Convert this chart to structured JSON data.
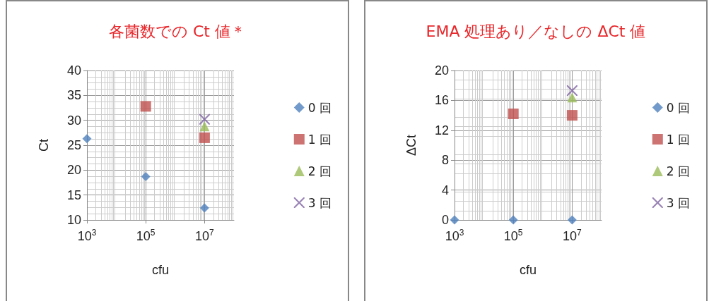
{
  "chart_data": [
    {
      "type": "scatter",
      "title": "各菌数での Ct 値＊",
      "xlabel": "cfu",
      "ylabel": "Ct",
      "log": "x",
      "grid": true,
      "legend": "right",
      "xlim": [
        1000,
        100000000
      ],
      "xticks": [
        {
          "value": 1000,
          "label": "10$^{3}$"
        },
        {
          "value": 100000,
          "label": "10$^{5}$"
        },
        {
          "value": 10000000,
          "label": "10$^{7}$"
        }
      ],
      "ylim": [
        10,
        40
      ],
      "yticks": [
        10,
        15,
        20,
        25,
        30,
        35,
        40
      ],
      "series": [
        {
          "name": "0 回",
          "color": "#4f81bd",
          "marker": "diamond",
          "x": [
            1000,
            100000,
            10000000
          ],
          "values": [
            26.3,
            18.7,
            12.4
          ]
        },
        {
          "name": "1 回",
          "color": "#c0504d",
          "marker": "square",
          "x": [
            100000,
            10000000
          ],
          "values": [
            32.8,
            26.5
          ]
        },
        {
          "name": "2 回",
          "color": "#9bbb59",
          "marker": "triangle",
          "x": [
            10000000
          ],
          "values": [
            28.8
          ]
        },
        {
          "name": "3 回",
          "color": "#8064a2",
          "marker": "cross",
          "x": [
            10000000
          ],
          "values": [
            30.2
          ]
        }
      ]
    },
    {
      "type": "scatter",
      "title": "EMA 処理あり／なしの ΔCt 値",
      "xlabel": "cfu",
      "ylabel": "ΔCt",
      "log": "x",
      "grid": true,
      "legend": "right",
      "xlim": [
        1000,
        100000000
      ],
      "xticks": [
        {
          "value": 1000,
          "label": "10$^{3}$"
        },
        {
          "value": 100000,
          "label": "10$^{5}$"
        },
        {
          "value": 10000000,
          "label": "10$^{7}$"
        }
      ],
      "ylim": [
        0,
        20
      ],
      "yticks": [
        0,
        4,
        8,
        12,
        16,
        20
      ],
      "series": [
        {
          "name": "0 回",
          "color": "#4f81bd",
          "marker": "diamond",
          "x": [
            1000,
            100000,
            10000000
          ],
          "values": [
            0,
            0,
            0
          ]
        },
        {
          "name": "1 回",
          "color": "#c0504d",
          "marker": "square",
          "x": [
            100000,
            10000000
          ],
          "values": [
            14.2,
            14.0
          ]
        },
        {
          "name": "2 回",
          "color": "#9bbb59",
          "marker": "triangle",
          "x": [
            10000000
          ],
          "values": [
            16.4
          ]
        },
        {
          "name": "3 回",
          "color": "#8064a2",
          "marker": "cross",
          "x": [
            10000000
          ],
          "values": [
            17.3
          ]
        }
      ]
    }
  ]
}
